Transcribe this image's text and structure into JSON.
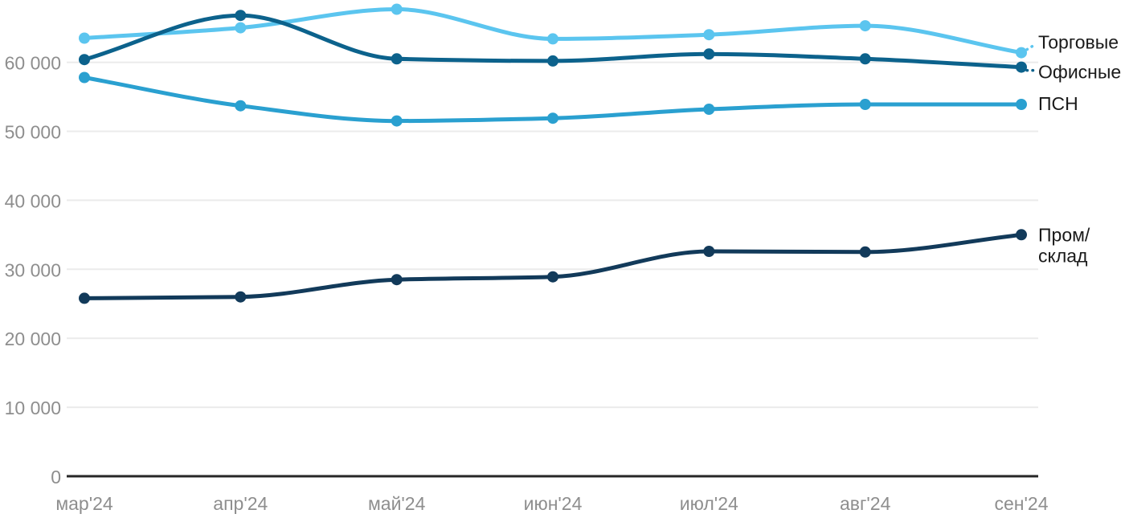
{
  "chart_data": {
    "type": "line",
    "title": "",
    "x_categories": [
      "мар'24",
      "апр'24",
      "май'24",
      "июн'24",
      "июл'24",
      "авг'24",
      "сен'24"
    ],
    "series": [
      {
        "id": "torgovye",
        "name": "Торговые",
        "label_lines": [
          "Торговые"
        ],
        "color": "#5BC5EF",
        "values": [
          63500,
          65000,
          67700,
          63400,
          64000,
          65300,
          61400
        ]
      },
      {
        "id": "ofisnye",
        "name": "Офисные",
        "label_lines": [
          "Офисные"
        ],
        "color": "#0C628C",
        "values": [
          60400,
          66800,
          60500,
          60200,
          61200,
          60500,
          59300
        ]
      },
      {
        "id": "psn",
        "name": "ПСН",
        "label_lines": [
          "ПСН"
        ],
        "color": "#2AA0D0",
        "values": [
          57800,
          53700,
          51500,
          51900,
          53200,
          53900,
          53900
        ]
      },
      {
        "id": "prom-sklad",
        "name": "Пром/склад",
        "label_lines": [
          "Пром/",
          "склад"
        ],
        "color": "#123A5A",
        "values": [
          25800,
          26000,
          28500,
          28900,
          32600,
          32500,
          35000
        ]
      }
    ],
    "y_ticks": [
      {
        "value": 0,
        "label": "0"
      },
      {
        "value": 10000,
        "label": "10 000"
      },
      {
        "value": 20000,
        "label": "20 000"
      },
      {
        "value": 30000,
        "label": "30 000"
      },
      {
        "value": 40000,
        "label": "40 000"
      },
      {
        "value": 50000,
        "label": "50 000"
      },
      {
        "value": 60000,
        "label": "60 000"
      }
    ],
    "ylim": [
      0,
      69000
    ],
    "xlabel": "",
    "ylabel": "",
    "grid": "horizontal",
    "legend_position": "right-of-line-ends",
    "colors": {
      "axis_line": "#262626",
      "grid_line": "#EBEBEB",
      "tick_label": "#8E8E8E",
      "series_label": "#1A1A1A",
      "background": "#FFFFFF"
    }
  }
}
